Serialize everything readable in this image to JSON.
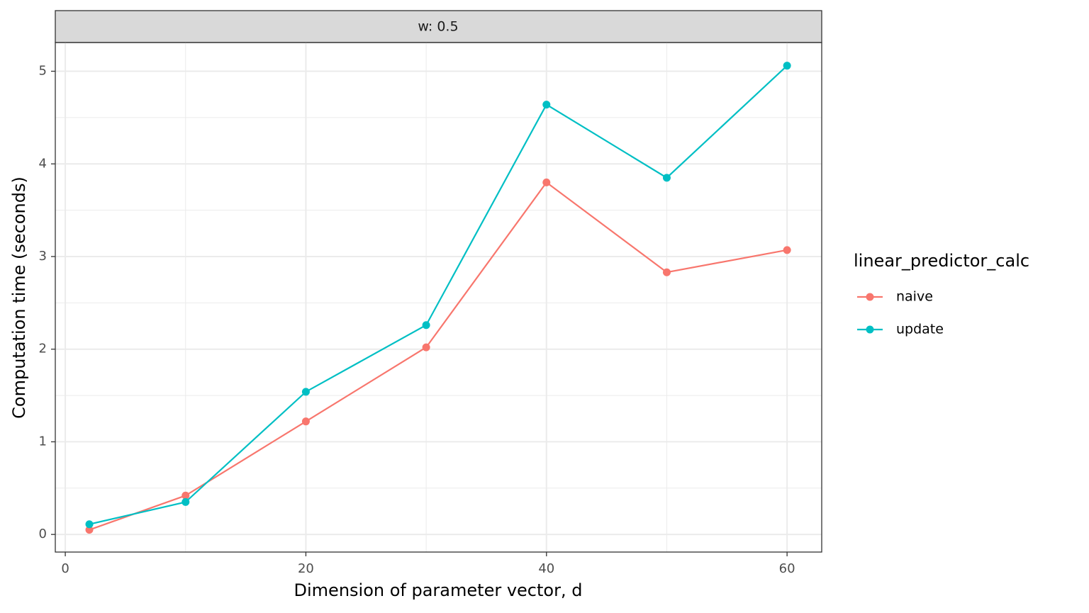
{
  "chart_data": {
    "type": "line",
    "strip": "w: 0.5",
    "x_label": "Dimension of parameter vector, d",
    "y_label": "Computation time (seconds)",
    "legend_title": "linear_predictor_calc",
    "legend_position": "right",
    "grid": true,
    "x": [
      2,
      10,
      20,
      30,
      40,
      50,
      60
    ],
    "series": [
      {
        "name": "naive",
        "color": "#F8766D",
        "values": [
          0.05,
          0.42,
          1.22,
          2.02,
          3.8,
          2.83,
          3.07
        ]
      },
      {
        "name": "update",
        "color": "#00BFC4",
        "values": [
          0.11,
          0.35,
          1.54,
          2.26,
          4.64,
          3.85,
          5.06
        ]
      }
    ],
    "xlim": [
      -0.83,
      62.88
    ],
    "xticks": [
      0,
      20,
      40,
      60
    ],
    "xminor": [
      10,
      30,
      50
    ],
    "ylim": [
      -0.19,
      5.31
    ],
    "yticks": [
      0,
      1,
      2,
      3,
      4,
      5
    ],
    "yminor": [
      0.5,
      1.5,
      2.5,
      3.5,
      4.5
    ]
  }
}
